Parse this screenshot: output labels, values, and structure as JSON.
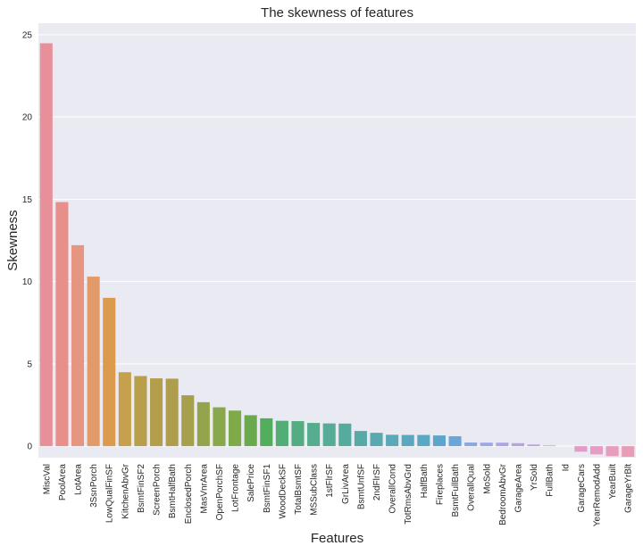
{
  "chart_data": {
    "type": "bar",
    "title": "The skewness of features",
    "xlabel": "Features",
    "ylabel": "Skewness",
    "ylim": [
      -0.7,
      25.7
    ],
    "yticks": [
      0,
      5,
      10,
      15,
      20,
      25
    ],
    "grid": "horizontal",
    "background": "#eaeaf2",
    "categories": [
      "MiscVal",
      "PoolArea",
      "LotArea",
      "3SsnPorch",
      "LowQualFinSF",
      "KitchenAbvGr",
      "BsmtFinSF2",
      "ScreenPorch",
      "BsmtHalfBath",
      "EnclosedPorch",
      "MasVnrArea",
      "OpenPorchSF",
      "LotFrontage",
      "SalePrice",
      "BsmtFinSF1",
      "WoodDeckSF",
      "TotalBsmtSF",
      "MSSubClass",
      "1stFlrSF",
      "GrLivArea",
      "BsmtUnfSF",
      "2ndFlrSF",
      "OverallCond",
      "TotRmsAbvGrd",
      "HalfBath",
      "Fireplaces",
      "BsmtFullBath",
      "OverallQual",
      "MoSold",
      "BedroomAbvGr",
      "GarageArea",
      "YrSold",
      "FullBath",
      "Id",
      "GarageCars",
      "YearRemodAdd",
      "YearBuilt",
      "GarageYrBlt"
    ],
    "values": [
      24.48,
      14.83,
      12.21,
      10.3,
      9.01,
      4.49,
      4.26,
      4.12,
      4.1,
      3.09,
      2.67,
      2.36,
      2.16,
      1.88,
      1.69,
      1.54,
      1.52,
      1.41,
      1.38,
      1.37,
      0.92,
      0.81,
      0.69,
      0.68,
      0.68,
      0.65,
      0.6,
      0.22,
      0.21,
      0.21,
      0.18,
      0.1,
      0.04,
      0.0,
      -0.34,
      -0.5,
      -0.61,
      -0.65
    ],
    "colors": [
      "#e8909a",
      "#e88f8a",
      "#e59580",
      "#e29a68",
      "#dc9a4f",
      "#c6a04c",
      "#b89f4c",
      "#b39e4c",
      "#ae9d4c",
      "#a69f4c",
      "#94a44c",
      "#89a74b",
      "#7eaa4a",
      "#6aa94e",
      "#52ad5d",
      "#53ad76",
      "#54ad82",
      "#55ac8e",
      "#56ac96",
      "#56ab9f",
      "#57aaa6",
      "#58aaae",
      "#59a9b6",
      "#5aa8bd",
      "#5ba7c4",
      "#5ea5cb",
      "#6aa6d9",
      "#8aa9e0",
      "#9fa6e3",
      "#aca7e4",
      "#b7a3e2",
      "#c2a0df",
      "#cc9ed9",
      "#d79ed2",
      "#e19dc8",
      "#e59ec3",
      "#e79dbd",
      "#e99cb6"
    ]
  }
}
